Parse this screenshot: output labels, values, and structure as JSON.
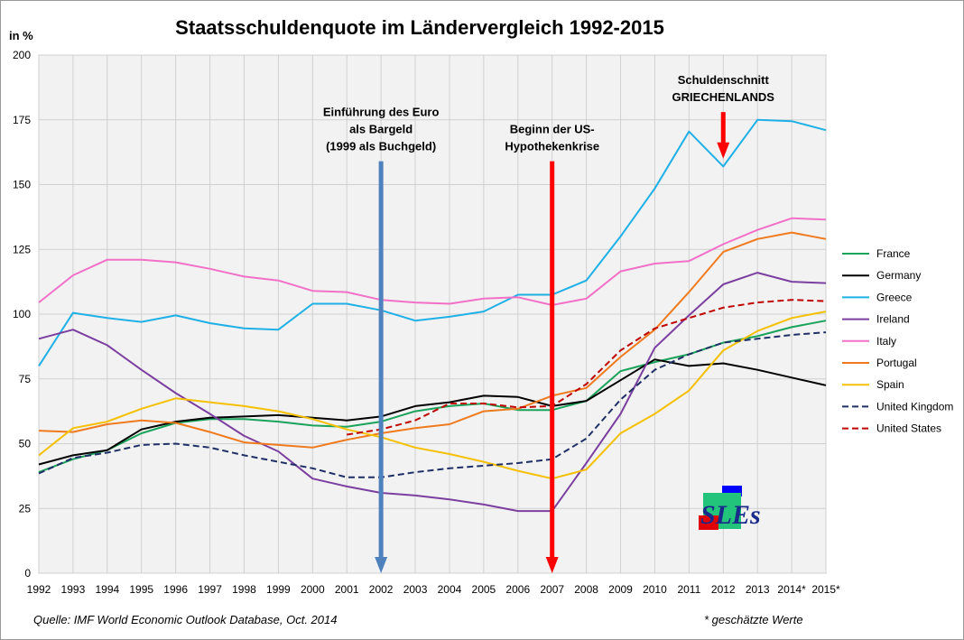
{
  "chart_data": {
    "type": "line",
    "title": "Staatsschuldenquote im Ländervergleich 1992-2015",
    "ylabel": "in %",
    "xlabel": "",
    "ylim": [
      0,
      200
    ],
    "yticks": [
      "0",
      "25",
      "50",
      "75",
      "100",
      "125",
      "150",
      "175",
      "200"
    ],
    "x": [
      "1992",
      "1993",
      "1994",
      "1995",
      "1996",
      "1997",
      "1998",
      "1999",
      "2000",
      "2001",
      "2002",
      "2003",
      "2004",
      "2005",
      "2006",
      "2007",
      "2008",
      "2009",
      "2010",
      "2011",
      "2012",
      "2013",
      "2014*",
      "2015*"
    ],
    "grid": true,
    "legend_position": "right",
    "series": [
      {
        "name": "France",
        "color": "#1aa35a",
        "dash": "solid",
        "values": [
          39,
          44,
          47.5,
          54,
          58,
          59.5,
          59.5,
          58.5,
          57,
          56.5,
          58.5,
          62.5,
          64.5,
          65.5,
          63,
          63,
          66.5,
          78,
          81.5,
          84.5,
          89,
          91.5,
          95,
          97.5
        ]
      },
      {
        "name": "Germany",
        "color": "#000000",
        "dash": "solid",
        "values": [
          42,
          45.5,
          47.5,
          55.5,
          58.5,
          60,
          60.5,
          61,
          60,
          59,
          60.5,
          64.5,
          66,
          68.5,
          68,
          64.5,
          66.5,
          74.5,
          82.5,
          80,
          81,
          78.5,
          75.5,
          72.5
        ]
      },
      {
        "name": "Greece",
        "color": "#1fb0e6",
        "dash": "solid",
        "values": [
          80,
          100.5,
          98.5,
          97,
          99.5,
          96.5,
          94.5,
          94,
          104,
          104,
          101.5,
          97.5,
          99,
          101,
          107.5,
          107.5,
          113,
          130,
          148.5,
          170.5,
          157,
          175,
          174.5,
          171
        ]
      },
      {
        "name": "Ireland",
        "color": "#7b3fa0",
        "dash": "solid",
        "values": [
          90.5,
          94,
          88,
          78.5,
          69.5,
          61.5,
          53,
          47,
          36.5,
          33.5,
          31,
          30,
          28.5,
          26.5,
          24,
          24,
          42.5,
          61.5,
          87,
          99.5,
          111.5,
          116,
          112.5,
          112
        ]
      },
      {
        "name": "Italy",
        "color": "#f270c8",
        "dash": "solid",
        "values": [
          104.5,
          115,
          121,
          121,
          120,
          117.5,
          114.5,
          113,
          109,
          108.5,
          105.5,
          104.5,
          104,
          106,
          106.5,
          103.5,
          106,
          116.5,
          119.5,
          120.5,
          127,
          132.5,
          137,
          136.5
        ]
      },
      {
        "name": "Portugal",
        "color": "#f07a1e",
        "dash": "solid",
        "values": [
          55,
          54.5,
          57.5,
          59,
          58,
          54.5,
          50.5,
          49.5,
          48.5,
          51.5,
          54,
          56,
          57.5,
          62.5,
          63.5,
          68.5,
          71.5,
          83.5,
          94,
          108.5,
          124,
          129,
          131.5,
          129
        ]
      },
      {
        "name": "Spain",
        "color": "#f5c000",
        "dash": "solid",
        "values": [
          45.5,
          56,
          58.5,
          63.5,
          67.5,
          66,
          64.5,
          62.5,
          59.5,
          55.5,
          52.5,
          48.5,
          46,
          43,
          39.5,
          36.5,
          40,
          54,
          61.5,
          70.5,
          86,
          93.5,
          98.5,
          101
        ]
      },
      {
        "name": "United Kingdom",
        "color": "#1f2f66",
        "dash": "dashed",
        "values": [
          38.5,
          44.5,
          46.5,
          49.5,
          50,
          48.5,
          45.5,
          43,
          40.5,
          37,
          37,
          39,
          40.5,
          41.5,
          42.5,
          44,
          52,
          67,
          78.5,
          84.5,
          89,
          90.5,
          92,
          93
        ]
      },
      {
        "name": "United States",
        "color": "#c00000",
        "dash": "dashed",
        "values": [
          null,
          null,
          null,
          null,
          null,
          null,
          null,
          null,
          null,
          53.5,
          55.5,
          59,
          65.5,
          65.5,
          64,
          64.5,
          73,
          86,
          94.5,
          98.5,
          102.5,
          104.5,
          105.5,
          105
        ]
      }
    ],
    "annotations": [
      {
        "lines": [
          "Einführung des Euro",
          "als Bargeld",
          "(1999 als Buchgeld)"
        ],
        "x": "2002",
        "arrow_color": "#4f81bd",
        "arrow_from": 159,
        "arrow_to": 0
      },
      {
        "lines": [
          "Beginn der US-",
          "Hypothekenkrise"
        ],
        "x": "2007",
        "arrow_color": "#ff0000",
        "arrow_from": 159,
        "arrow_to": 0
      },
      {
        "lines": [
          "Schuldenschnitt",
          "GRIECHENLANDS"
        ],
        "x": "2012",
        "arrow_color": "#ff0000",
        "arrow_from": 178,
        "arrow_to": 160
      }
    ]
  },
  "footer": {
    "source": "Quelle: IMF World Economic Outlook Database, Oct. 2014",
    "estimate_note": "* geschätzte Werte"
  },
  "logo": {
    "text": "SLEs"
  }
}
